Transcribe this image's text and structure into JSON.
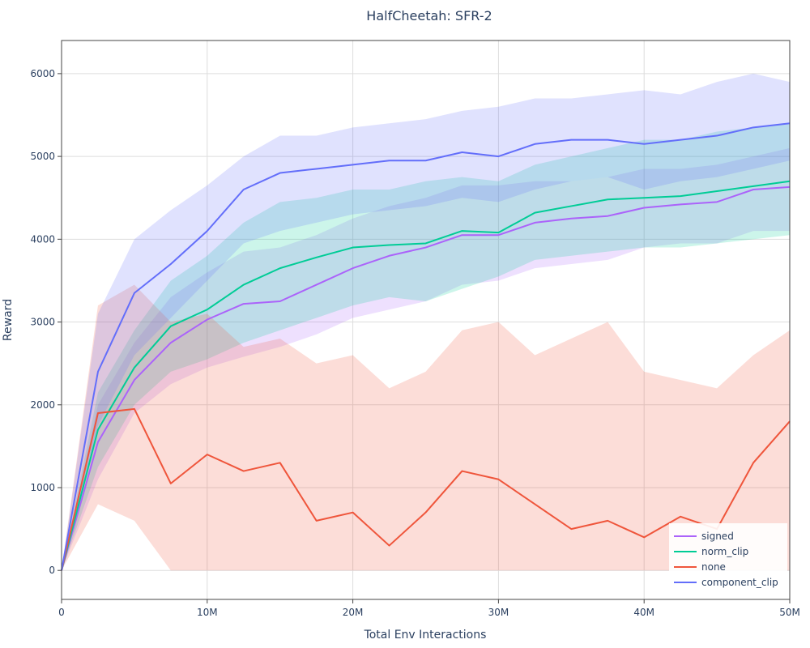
{
  "chart_data": {
    "type": "line",
    "title": "HalfCheetah: SFR-2",
    "xlabel": "Total Env Interactions",
    "ylabel": "Reward",
    "xlim": [
      0,
      50000000
    ],
    "ylim": [
      -350,
      6400
    ],
    "x_ticks": [
      {
        "value": 0,
        "label": "0"
      },
      {
        "value": 10000000,
        "label": "10M"
      },
      {
        "value": 20000000,
        "label": "20M"
      },
      {
        "value": 30000000,
        "label": "30M"
      },
      {
        "value": 40000000,
        "label": "40M"
      },
      {
        "value": 50000000,
        "label": "50M"
      }
    ],
    "y_ticks": [
      {
        "value": 0,
        "label": "0"
      },
      {
        "value": 1000,
        "label": "1000"
      },
      {
        "value": 2000,
        "label": "2000"
      },
      {
        "value": 3000,
        "label": "3000"
      },
      {
        "value": 4000,
        "label": "4000"
      },
      {
        "value": 5000,
        "label": "5000"
      },
      {
        "value": 6000,
        "label": "6000"
      }
    ],
    "grid": true,
    "legend_position": "bottom-right",
    "x": [
      0,
      2500000,
      5000000,
      7500000,
      10000000,
      12500000,
      15000000,
      17500000,
      20000000,
      22500000,
      25000000,
      27500000,
      30000000,
      32500000,
      35000000,
      37500000,
      40000000,
      42500000,
      45000000,
      47500000,
      50000000
    ],
    "series": [
      {
        "name": "signed",
        "color": "#ab63fa",
        "values": [
          0,
          1550,
          2300,
          2750,
          3030,
          3220,
          3250,
          3450,
          3650,
          3800,
          3900,
          4050,
          4050,
          4200,
          4250,
          4280,
          4380,
          4420,
          4450,
          4600,
          4630
        ],
        "lower": [
          0,
          1100,
          1900,
          2250,
          2450,
          2580,
          2700,
          2850,
          3050,
          3150,
          3250,
          3450,
          3500,
          3650,
          3700,
          3750,
          3900,
          3950,
          3950,
          4100,
          4100
        ],
        "upper": [
          0,
          2000,
          2750,
          3300,
          3600,
          3850,
          3900,
          4050,
          4250,
          4400,
          4500,
          4650,
          4650,
          4700,
          4700,
          4750,
          4850,
          4850,
          4900,
          5000,
          5100
        ]
      },
      {
        "name": "norm_clip",
        "color": "#00cc96",
        "values": [
          0,
          1700,
          2450,
          2950,
          3150,
          3450,
          3650,
          3780,
          3900,
          3930,
          3950,
          4100,
          4080,
          4320,
          4400,
          4480,
          4500,
          4520,
          4580,
          4640,
          4700
        ],
        "lower": [
          0,
          1250,
          2000,
          2400,
          2550,
          2750,
          2900,
          3050,
          3200,
          3300,
          3250,
          3400,
          3550,
          3750,
          3800,
          3850,
          3900,
          3900,
          3950,
          4000,
          4050
        ],
        "upper": [
          0,
          2150,
          2900,
          3500,
          3800,
          4200,
          4450,
          4500,
          4600,
          4600,
          4700,
          4750,
          4700,
          4900,
          5000,
          5100,
          5200,
          5200,
          5300,
          5350,
          5400
        ]
      },
      {
        "name": "none",
        "color": "#ef553b",
        "values": [
          0,
          1900,
          1950,
          1050,
          1400,
          1200,
          1300,
          600,
          700,
          300,
          700,
          1200,
          1100,
          800,
          500,
          600,
          400,
          650,
          500,
          1300,
          1800
        ],
        "lower": [
          0,
          800,
          600,
          0,
          0,
          0,
          0,
          0,
          0,
          0,
          0,
          0,
          0,
          0,
          0,
          0,
          0,
          0,
          0,
          0,
          0
        ],
        "upper": [
          0,
          3200,
          3450,
          3000,
          3100,
          2700,
          2800,
          2500,
          2600,
          2200,
          2400,
          2900,
          3000,
          2600,
          2800,
          3000,
          2400,
          2300,
          2200,
          2600,
          2900
        ]
      },
      {
        "name": "component_clip",
        "color": "#636efa",
        "values": [
          0,
          2400,
          3350,
          3700,
          4100,
          4600,
          4800,
          4850,
          4900,
          4950,
          4950,
          5050,
          5000,
          5150,
          5200,
          5200,
          5150,
          5200,
          5250,
          5350,
          5400
        ],
        "lower": [
          0,
          1750,
          2600,
          3050,
          3500,
          3950,
          4100,
          4200,
          4300,
          4350,
          4400,
          4500,
          4450,
          4600,
          4700,
          4750,
          4600,
          4700,
          4750,
          4850,
          4950
        ],
        "upper": [
          0,
          3100,
          4000,
          4350,
          4650,
          5000,
          5250,
          5250,
          5350,
          5400,
          5450,
          5550,
          5600,
          5700,
          5700,
          5750,
          5800,
          5750,
          5900,
          6000,
          5900
        ]
      }
    ]
  }
}
